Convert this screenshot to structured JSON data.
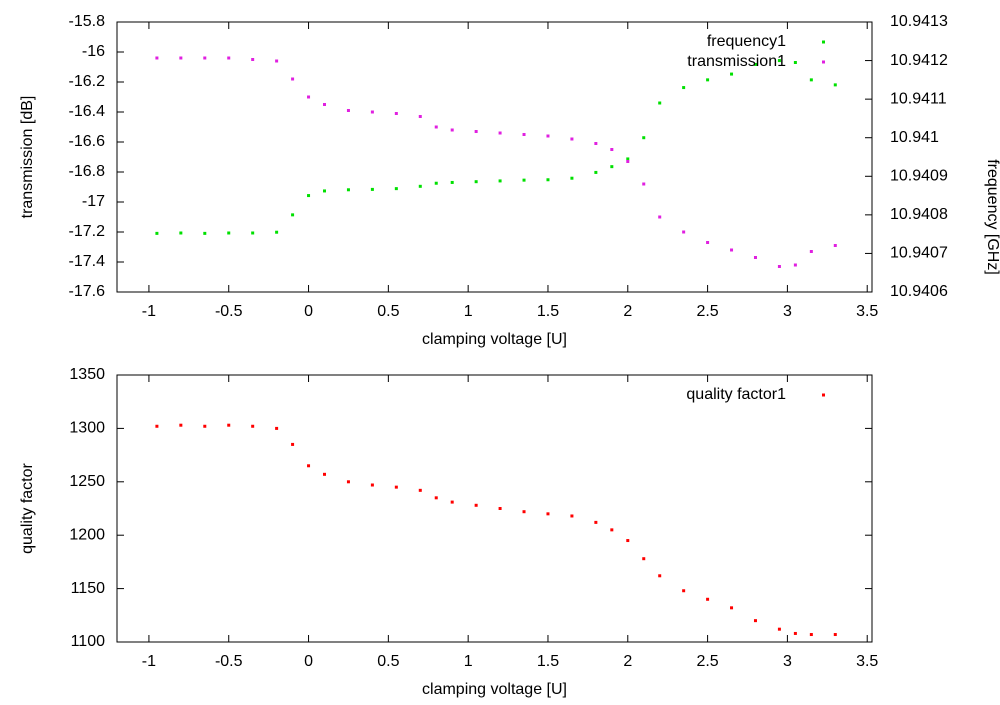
{
  "chart_data": [
    {
      "type": "scatter",
      "x_label": "clamping voltage [U]",
      "y_label": "transmission [dB]",
      "y2_label": "frequency [GHz]",
      "x": [
        -0.95,
        -0.8,
        -0.65,
        -0.5,
        -0.35,
        -0.2,
        -0.1,
        0,
        0.1,
        0.25,
        0.4,
        0.55,
        0.7,
        0.8,
        0.9,
        1.05,
        1.2,
        1.35,
        1.5,
        1.65,
        1.8,
        1.9,
        2.0,
        2.1,
        2.2,
        2.35,
        2.5,
        2.65,
        2.8,
        2.95,
        3.05,
        3.15,
        3.3
      ],
      "series": [
        {
          "name": "frequency1",
          "color": "#00e000",
          "axis": "y2",
          "values": [
            10.940752,
            10.940753,
            10.940752,
            10.940753,
            10.940753,
            10.940755,
            10.9408,
            10.94085,
            10.940862,
            10.940865,
            10.940866,
            10.940868,
            10.940874,
            10.940882,
            10.940884,
            10.940886,
            10.940888,
            10.94089,
            10.940891,
            10.940895,
            10.94091,
            10.940925,
            10.940945,
            10.941,
            10.94109,
            10.94113,
            10.94115,
            10.941165,
            10.94119,
            10.9412,
            10.941195,
            10.94115,
            10.941137
          ]
        },
        {
          "name": "transmission1",
          "color": "#e020e0",
          "values": [
            -16.04,
            -16.04,
            -16.04,
            -16.04,
            -16.05,
            -16.06,
            -16.18,
            -16.3,
            -16.35,
            -16.39,
            -16.4,
            -16.41,
            -16.43,
            -16.5,
            -16.52,
            -16.53,
            -16.54,
            -16.55,
            -16.56,
            -16.58,
            -16.61,
            -16.65,
            -16.73,
            -16.88,
            -17.1,
            -17.2,
            -17.27,
            -17.32,
            -17.37,
            -17.43,
            -17.42,
            -17.33,
            -17.29
          ]
        }
      ],
      "xlim": [
        -1.2,
        3.53
      ],
      "xticks": [
        -1,
        -0.5,
        0,
        0.5,
        1,
        1.5,
        2,
        2.5,
        3,
        3.5
      ],
      "ylim": [
        -17.6,
        -15.8
      ],
      "yticks": [
        -17.6,
        -17.4,
        -17.2,
        -17,
        -16.8,
        -16.6,
        -16.4,
        -16.2,
        -16,
        -15.8
      ],
      "y2lim": [
        10.9406,
        10.9413
      ],
      "y2ticks": [
        10.9406,
        10.9407,
        10.9408,
        10.9409,
        10.941,
        10.9411,
        10.9412,
        10.9413
      ],
      "legend": "top-right",
      "grid": false
    },
    {
      "type": "scatter",
      "x_label": "clamping voltage [U]",
      "y_label": "quality factor",
      "x": [
        -0.95,
        -0.8,
        -0.65,
        -0.5,
        -0.35,
        -0.2,
        -0.1,
        0,
        0.1,
        0.25,
        0.4,
        0.55,
        0.7,
        0.8,
        0.9,
        1.05,
        1.2,
        1.35,
        1.5,
        1.65,
        1.8,
        1.9,
        2.0,
        2.1,
        2.2,
        2.35,
        2.5,
        2.65,
        2.8,
        2.95,
        3.05,
        3.15,
        3.3
      ],
      "series": [
        {
          "name": "quality factor1",
          "color": "#ff0000",
          "values": [
            1302,
            1303,
            1302,
            1303,
            1302,
            1300,
            1285,
            1265,
            1257,
            1250,
            1247,
            1245,
            1242,
            1235,
            1231,
            1228,
            1225,
            1222,
            1220,
            1218,
            1212,
            1205,
            1195,
            1178,
            1162,
            1148,
            1140,
            1132,
            1120,
            1112,
            1108,
            1107,
            1107
          ]
        }
      ],
      "xlim": [
        -1.2,
        3.53
      ],
      "xticks": [
        -1,
        -0.5,
        0,
        0.5,
        1,
        1.5,
        2,
        2.5,
        3,
        3.5
      ],
      "ylim": [
        1100,
        1350
      ],
      "yticks": [
        1100,
        1150,
        1200,
        1250,
        1300,
        1350
      ],
      "legend": "top-right",
      "grid": false
    }
  ]
}
